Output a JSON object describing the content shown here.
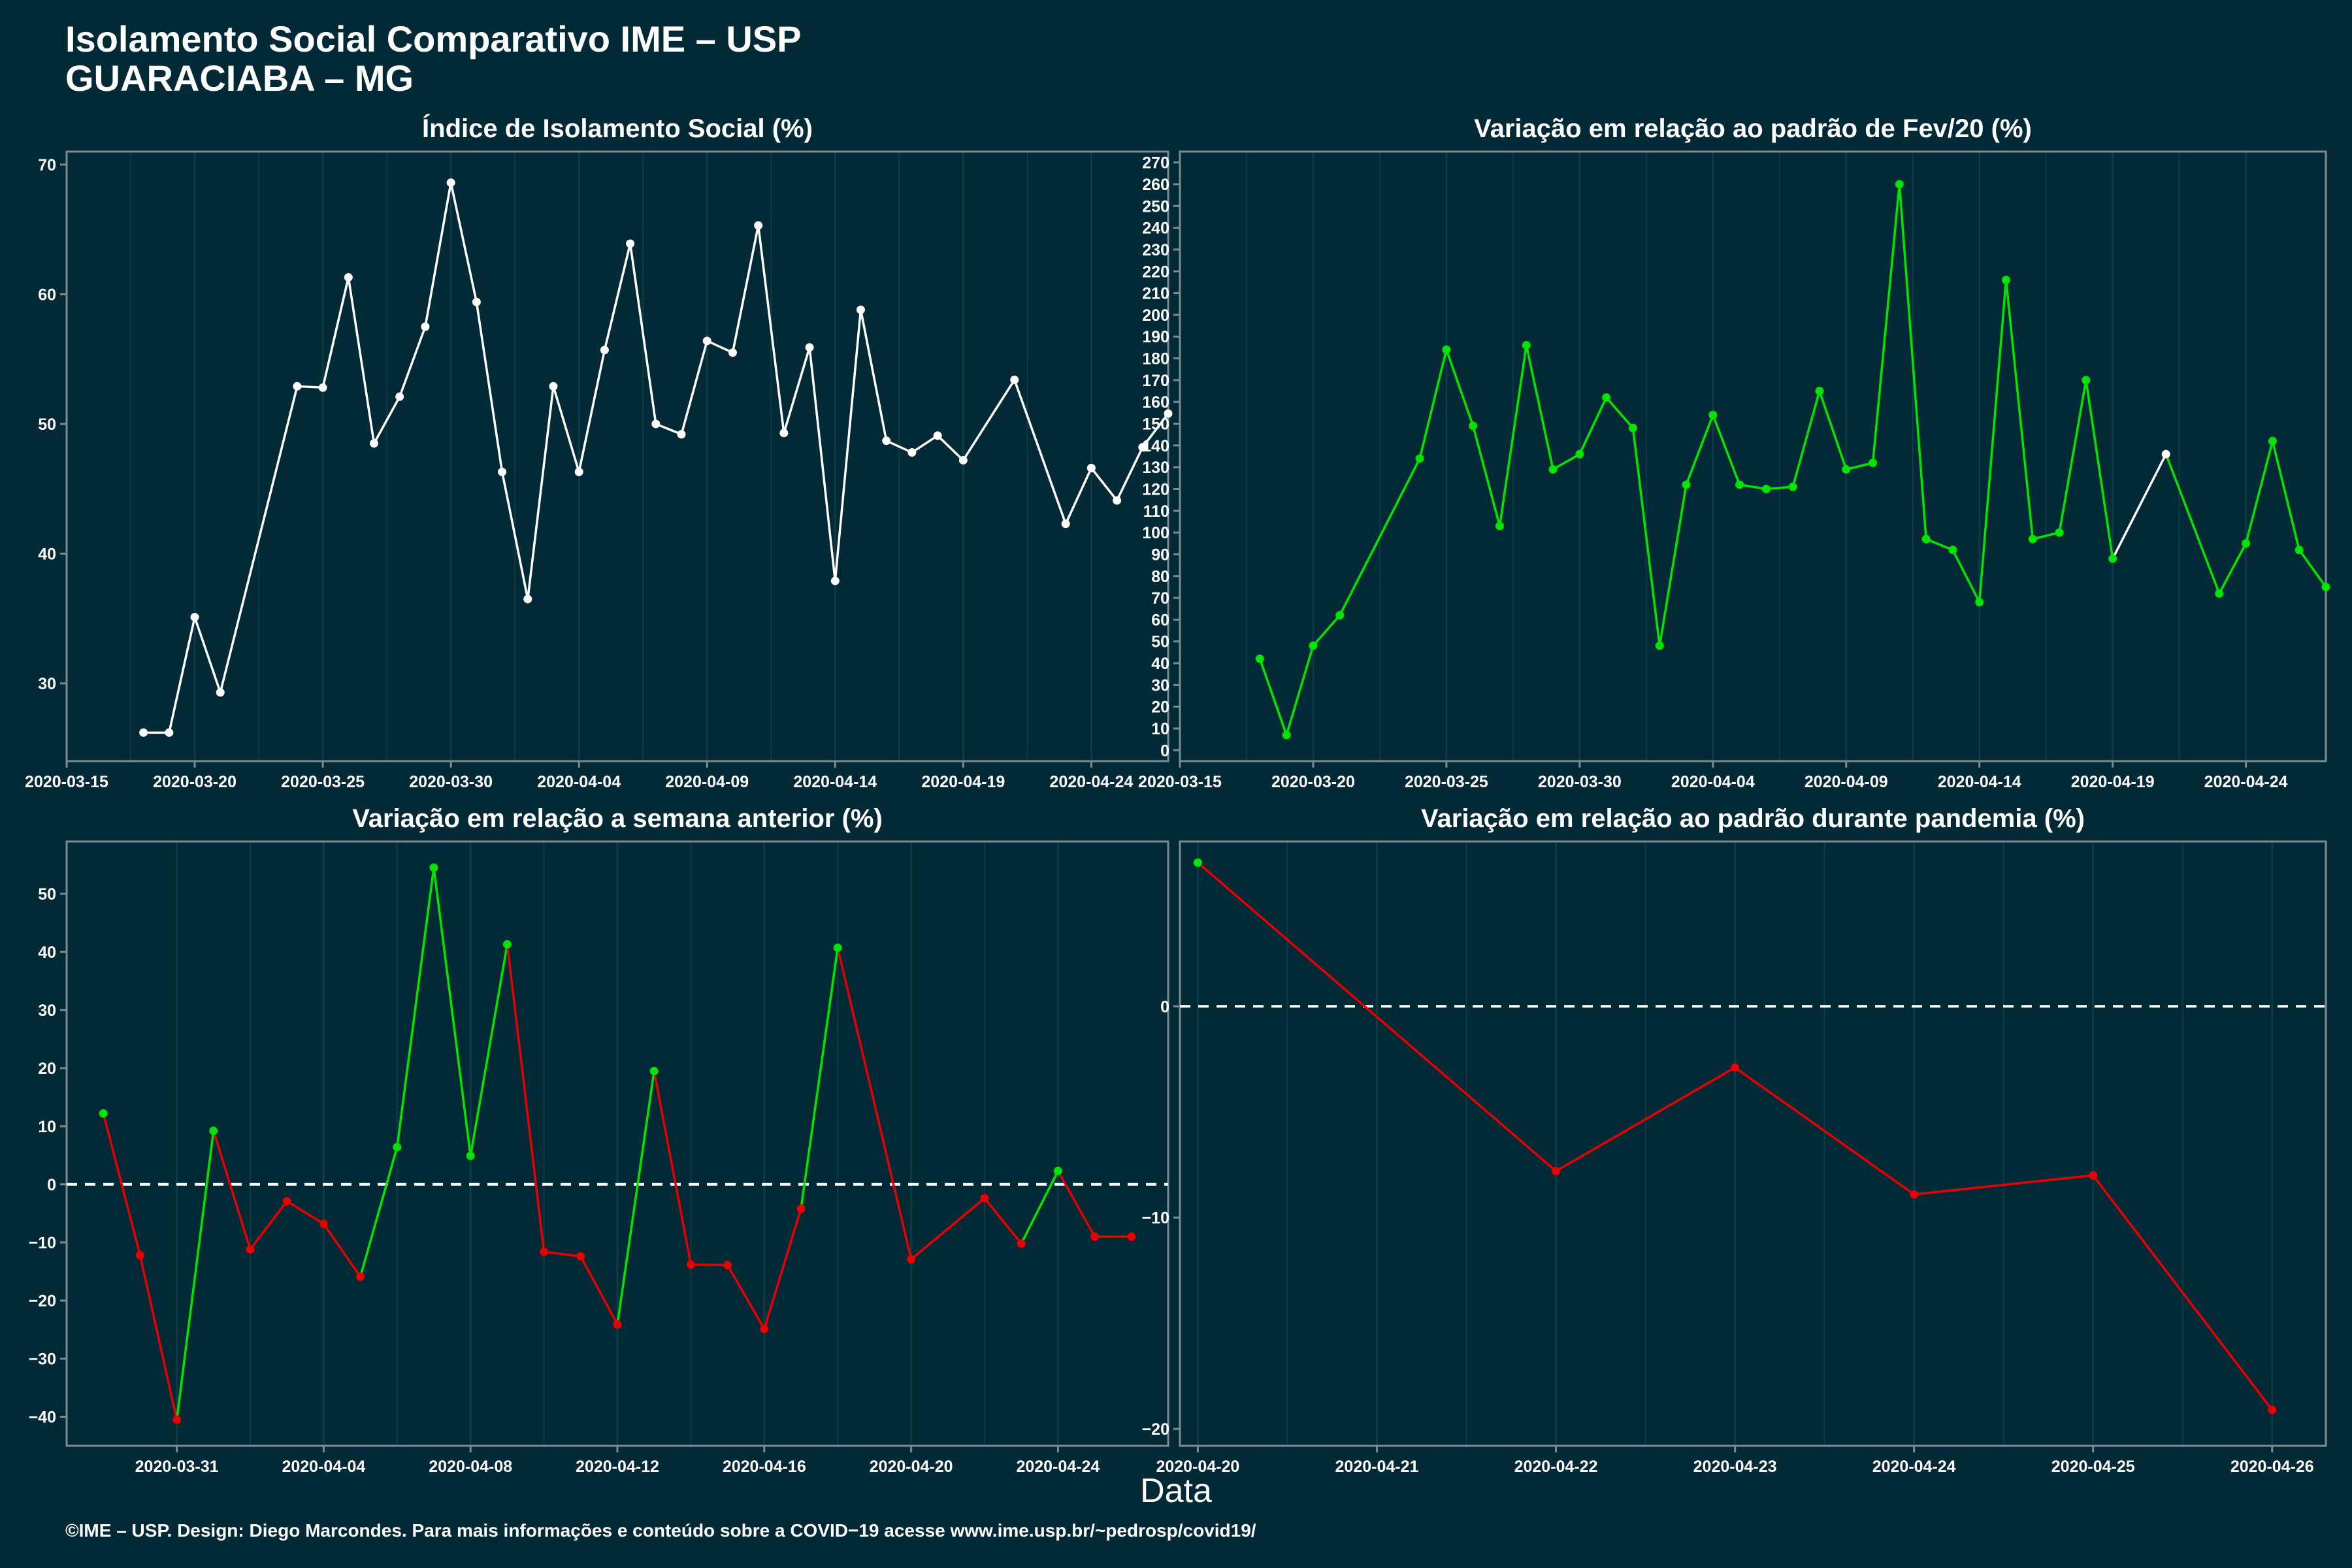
{
  "page": {
    "title_line1": "Isolamento Social Comparativo IME – USP",
    "title_line2": "GUARACIABA – MG",
    "x_axis_label": "Data",
    "footer": "©IME – USP. Design: Diego Marcondes. Para mais informações e conteúdo sobre a COVID−19 acesse www.ime.usp.br/~pedrosp/covid19/"
  },
  "colors": {
    "background": "#022A36",
    "panel_border": "#7A8C92",
    "grid": "#0F3B45",
    "white": "#FFFFFF",
    "green": "#00E400",
    "red": "#E80000"
  },
  "chart_data": [
    {
      "type": "line",
      "title": "Índice de Isolamento Social (%)",
      "x_start": "2020-03-18",
      "x": [
        "2020-03-18",
        "2020-03-19",
        "2020-03-20",
        "2020-03-21",
        "2020-03-24",
        "2020-03-25",
        "2020-03-26",
        "2020-03-27",
        "2020-03-28",
        "2020-03-29",
        "2020-03-30",
        "2020-03-31",
        "2020-04-01",
        "2020-04-02",
        "2020-04-03",
        "2020-04-04",
        "2020-04-05",
        "2020-04-06",
        "2020-04-07",
        "2020-04-08",
        "2020-04-09",
        "2020-04-10",
        "2020-04-11",
        "2020-04-12",
        "2020-04-13",
        "2020-04-14",
        "2020-04-15",
        "2020-04-16",
        "2020-04-17",
        "2020-04-18",
        "2020-04-19",
        "2020-04-21",
        "2020-04-23",
        "2020-04-24",
        "2020-04-25",
        "2020-04-26",
        "2020-04-27"
      ],
      "values": [
        26.2,
        26.2,
        35.1,
        29.3,
        52.9,
        52.8,
        61.3,
        48.5,
        52.1,
        57.5,
        68.6,
        59.4,
        46.3,
        36.5,
        52.9,
        46.3,
        55.7,
        63.9,
        50.0,
        49.2,
        56.4,
        55.5,
        65.3,
        49.3,
        55.9,
        37.9,
        58.8,
        48.7,
        47.8,
        49.1,
        47.2,
        53.4,
        42.3,
        46.6,
        44.1,
        48.2,
        50.8
      ],
      "colors": [
        "white",
        "white",
        "white",
        "white",
        "white",
        "white",
        "white",
        "white",
        "white",
        "white",
        "white",
        "white",
        "white",
        "white",
        "white",
        "white",
        "white",
        "white",
        "white",
        "white",
        "white",
        "white",
        "white",
        "white",
        "white",
        "white",
        "white",
        "white",
        "white",
        "white",
        "white",
        "white",
        "white",
        "white",
        "white",
        "white",
        "white"
      ],
      "xlim": [
        "2020-03-15",
        "2020-04-27"
      ],
      "x_ticks": [
        "2020-03-15",
        "2020-03-20",
        "2020-03-25",
        "2020-03-30",
        "2020-04-04",
        "2020-04-09",
        "2020-04-14",
        "2020-04-19",
        "2020-04-24"
      ],
      "ylim": [
        24,
        71
      ],
      "y_ticks": [
        30,
        40,
        50,
        60,
        70
      ],
      "y_tick_labels": [
        "30",
        "40",
        "50",
        "60",
        "70"
      ],
      "zero_line": false
    },
    {
      "type": "line",
      "title": "Variação em relação ao padrão de Fev/20 (%)",
      "x": [
        "2020-03-18",
        "2020-03-19",
        "2020-03-20",
        "2020-03-21",
        "2020-03-24",
        "2020-03-25",
        "2020-03-26",
        "2020-03-27",
        "2020-03-28",
        "2020-03-29",
        "2020-03-30",
        "2020-03-31",
        "2020-04-01",
        "2020-04-02",
        "2020-04-03",
        "2020-04-04",
        "2020-04-05",
        "2020-04-06",
        "2020-04-07",
        "2020-04-08",
        "2020-04-09",
        "2020-04-10",
        "2020-04-11",
        "2020-04-12",
        "2020-04-13",
        "2020-04-14",
        "2020-04-15",
        "2020-04-16",
        "2020-04-17",
        "2020-04-18",
        "2020-04-19",
        "2020-04-21",
        "2020-04-23",
        "2020-04-24",
        "2020-04-25",
        "2020-04-26",
        "2020-04-27"
      ],
      "values": [
        42,
        7,
        48,
        62,
        134,
        184,
        149,
        103,
        186,
        129,
        136,
        162,
        148,
        48,
        122,
        154,
        122,
        120,
        121,
        165,
        129,
        132,
        260,
        97,
        92,
        68,
        216,
        97,
        100,
        170,
        88,
        136,
        72,
        95,
        142,
        92,
        75
      ],
      "colors": [
        "green",
        "green",
        "green",
        "green",
        "green",
        "green",
        "green",
        "green",
        "green",
        "green",
        "green",
        "green",
        "green",
        "green",
        "green",
        "green",
        "green",
        "green",
        "green",
        "green",
        "green",
        "green",
        "green",
        "green",
        "green",
        "green",
        "green",
        "green",
        "green",
        "green",
        "green",
        "white",
        "green",
        "green",
        "green",
        "green",
        "green"
      ],
      "xlim": [
        "2020-03-15",
        "2020-04-27"
      ],
      "x_ticks": [
        "2020-03-15",
        "2020-03-20",
        "2020-03-25",
        "2020-03-30",
        "2020-04-04",
        "2020-04-09",
        "2020-04-14",
        "2020-04-19",
        "2020-04-24"
      ],
      "ylim": [
        -5,
        275
      ],
      "y_ticks": [
        0,
        10,
        20,
        30,
        40,
        50,
        60,
        70,
        80,
        90,
        100,
        110,
        120,
        130,
        140,
        150,
        160,
        170,
        180,
        190,
        200,
        210,
        220,
        230,
        240,
        250,
        260,
        270
      ],
      "y_tick_labels": [
        "0",
        "10",
        "20",
        "30",
        "40",
        "50",
        "60",
        "70",
        "80",
        "90",
        "100",
        "110",
        "120",
        "130",
        "140",
        "150",
        "160",
        "170",
        "180",
        "190",
        "200",
        "210",
        "220",
        "230",
        "240",
        "250",
        "260",
        "270"
      ],
      "zero_line": false
    },
    {
      "type": "line",
      "title": "Variação em relação a semana anterior (%)",
      "x": [
        "2020-03-29",
        "2020-03-30",
        "2020-03-31",
        "2020-04-01",
        "2020-04-02",
        "2020-04-03",
        "2020-04-04",
        "2020-04-05",
        "2020-04-06",
        "2020-04-07",
        "2020-04-08",
        "2020-04-09",
        "2020-04-10",
        "2020-04-11",
        "2020-04-12",
        "2020-04-13",
        "2020-04-14",
        "2020-04-15",
        "2020-04-16",
        "2020-04-17",
        "2020-04-18",
        "2020-04-20",
        "2020-04-22",
        "2020-04-23",
        "2020-04-24",
        "2020-04-25",
        "2020-04-26"
      ],
      "values": [
        12.2,
        -12.2,
        -40.5,
        9.2,
        -11.2,
        -2.9,
        -6.8,
        -15.9,
        6.4,
        54.5,
        4.9,
        41.3,
        -11.6,
        -12.4,
        -24.1,
        19.5,
        -13.8,
        -13.9,
        -24.9,
        -4.2,
        40.7,
        -12.9,
        -2.4,
        -10.2,
        2.3,
        -9.0,
        -9.0
      ],
      "colors": [
        "green",
        "red",
        "red",
        "green",
        "red",
        "red",
        "red",
        "red",
        "green",
        "green",
        "green",
        "green",
        "red",
        "red",
        "red",
        "green",
        "red",
        "red",
        "red",
        "red",
        "green",
        "red",
        "red",
        "red",
        "green",
        "red",
        "red"
      ],
      "xlim": [
        "2020-03-28",
        "2020-04-27"
      ],
      "x_ticks": [
        "2020-03-31",
        "2020-04-04",
        "2020-04-08",
        "2020-04-12",
        "2020-04-16",
        "2020-04-20",
        "2020-04-24"
      ],
      "ylim": [
        -45,
        59
      ],
      "y_ticks": [
        -40,
        -30,
        -20,
        -10,
        0,
        10,
        20,
        30,
        40,
        50
      ],
      "y_tick_labels": [
        "−40",
        "−30",
        "−20",
        "−10",
        "0",
        "10",
        "20",
        "30",
        "40",
        "50"
      ],
      "zero_line": true
    },
    {
      "type": "line",
      "title": "Variação em relação ao padrão durante pandemia (%)",
      "x": [
        "2020-04-20",
        "2020-04-22",
        "2020-04-23",
        "2020-04-24",
        "2020-04-25",
        "2020-04-26"
      ],
      "values": [
        6.8,
        -7.8,
        -2.9,
        -8.9,
        -8.0,
        -19.1
      ],
      "colors": [
        "green",
        "red",
        "red",
        "red",
        "red",
        "red"
      ],
      "xlim": [
        "2020-04-19.9",
        "2020-04-26.3"
      ],
      "x_ticks": [
        "2020-04-20",
        "2020-04-21",
        "2020-04-22",
        "2020-04-23",
        "2020-04-24",
        "2020-04-25",
        "2020-04-26"
      ],
      "ylim": [
        -20.8,
        7.8
      ],
      "y_ticks": [
        -20,
        -10,
        0
      ],
      "y_tick_labels": [
        "−20",
        "−10",
        "0"
      ],
      "zero_line": true
    }
  ]
}
